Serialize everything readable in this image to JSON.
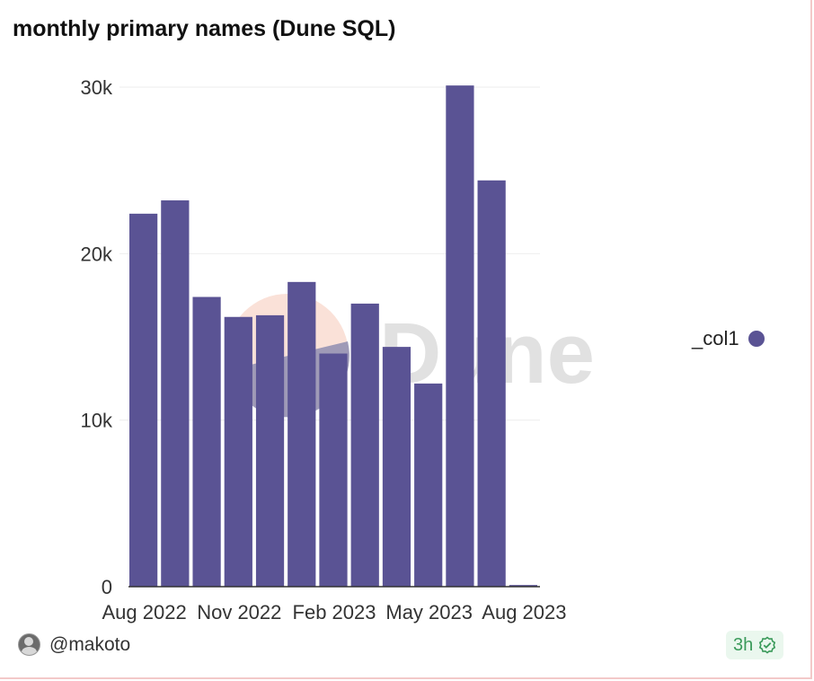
{
  "title": "monthly primary names (Dune SQL)",
  "watermark": "Dune",
  "colors": {
    "bar": "#5a5394",
    "grid": "#eeeeee",
    "badge_text": "#3a9a5a"
  },
  "chart_data": {
    "type": "bar",
    "title": "monthly primary names (Dune SQL)",
    "xlabel": "",
    "ylabel": "",
    "categories": [
      "Aug 2022",
      "Sep 2022",
      "Oct 2022",
      "Nov 2022",
      "Dec 2022",
      "Jan 2023",
      "Feb 2023",
      "Mar 2023",
      "Apr 2023",
      "May 2023",
      "Jun 2023",
      "Jul 2023",
      "Aug 2023"
    ],
    "x_tick_labels": [
      "Aug 2022",
      "Nov 2022",
      "Feb 2023",
      "May 2023",
      "Aug 2023"
    ],
    "series": [
      {
        "name": "_col1",
        "values": [
          22400,
          23200,
          17400,
          16200,
          16300,
          18300,
          14000,
          17000,
          14400,
          12200,
          30100,
          24400,
          100
        ]
      }
    ],
    "ylim": [
      0,
      30000
    ],
    "y_ticks": [
      0,
      10000,
      20000,
      30000
    ],
    "y_tick_labels": [
      "0",
      "10k",
      "20k",
      "30k"
    ],
    "grid": true,
    "legend": {
      "placement": "right",
      "entries": [
        "_col1"
      ]
    }
  },
  "footer": {
    "user": "@makoto",
    "age": "3h"
  },
  "icons": {
    "avatar": "user-avatar",
    "status": "check-circle-icon"
  }
}
